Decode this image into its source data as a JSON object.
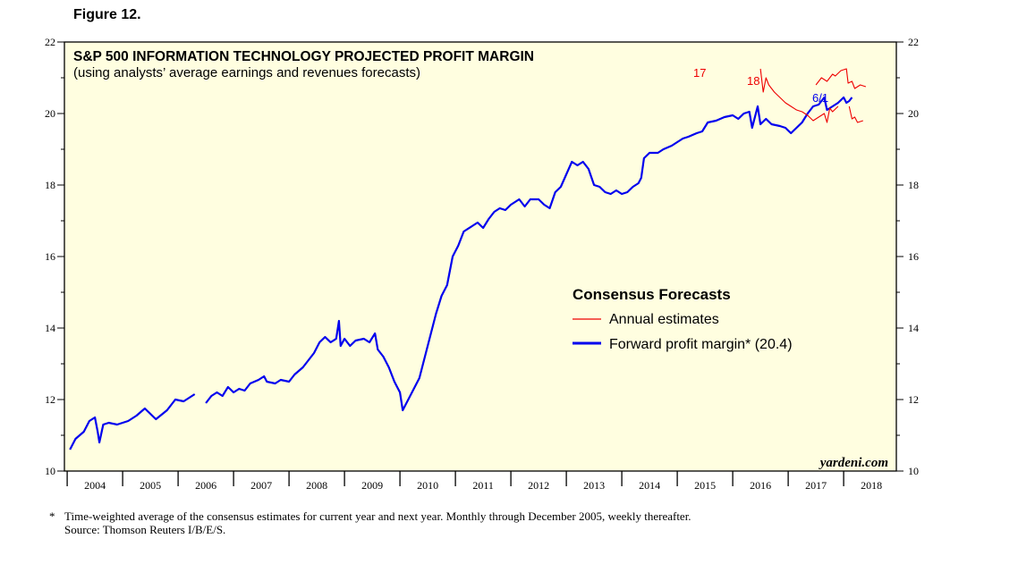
{
  "figure_label": "Figure 12.",
  "footnote_marker": "*",
  "footnote": "Time-weighted average of the consensus estimates for current year and next year. Monthly through December 2005, weekly thereafter.",
  "source": "Source: Thomson Reuters I/B/E/S.",
  "colors": {
    "plot_bg": "#fffee0",
    "forward_line": "#0000ee",
    "annual_line": "#ee0000",
    "axis": "#000000"
  },
  "chart_data": {
    "type": "line",
    "title": "S&P 500 INFORMATION TECHNOLOGY PROJECTED PROFIT MARGIN",
    "subtitle": "(using analysts’ average earnings and revenues forecasts)",
    "watermark": "yardeni.com",
    "x_range": [
      2003.95,
      2018.95
    ],
    "ylim": [
      10,
      22
    ],
    "y_ticks": [
      "10",
      "12",
      "14",
      "16",
      "18",
      "20",
      "22"
    ],
    "x_tick_labels": [
      "2004",
      "2005",
      "2006",
      "2007",
      "2008",
      "2009",
      "2010",
      "2011",
      "2012",
      "2013",
      "2014",
      "2015",
      "2016",
      "2017",
      "2018"
    ],
    "legend_title": "Consensus Forecasts",
    "legend": [
      "Annual estimates",
      "Forward profit margin* (20.4)"
    ],
    "end_label": "6/1",
    "series": [
      {
        "name": "Forward profit margin",
        "role": "forward",
        "segments": [
          [
            [
              2004.05,
              10.6
            ],
            [
              2004.15,
              10.9
            ],
            [
              2004.3,
              11.1
            ],
            [
              2004.4,
              11.4
            ],
            [
              2004.5,
              11.5
            ],
            [
              2004.55,
              11.1
            ],
            [
              2004.58,
              10.8
            ],
            [
              2004.65,
              11.3
            ],
            [
              2004.75,
              11.35
            ],
            [
              2004.9,
              11.3
            ],
            [
              2005.1,
              11.4
            ],
            [
              2005.25,
              11.55
            ],
            [
              2005.4,
              11.75
            ],
            [
              2005.5,
              11.6
            ],
            [
              2005.6,
              11.45
            ],
            [
              2005.8,
              11.7
            ],
            [
              2005.95,
              12.0
            ],
            [
              2006.1,
              11.95
            ],
            [
              2006.3,
              12.15
            ]
          ],
          [
            [
              2006.5,
              11.9
            ],
            [
              2006.6,
              12.1
            ],
            [
              2006.7,
              12.2
            ],
            [
              2006.8,
              12.1
            ],
            [
              2006.9,
              12.35
            ],
            [
              2007.0,
              12.2
            ],
            [
              2007.1,
              12.3
            ],
            [
              2007.2,
              12.25
            ],
            [
              2007.3,
              12.45
            ],
            [
              2007.45,
              12.55
            ],
            [
              2007.55,
              12.65
            ],
            [
              2007.6,
              12.5
            ],
            [
              2007.75,
              12.45
            ],
            [
              2007.85,
              12.55
            ],
            [
              2008.0,
              12.5
            ],
            [
              2008.1,
              12.7
            ],
            [
              2008.25,
              12.9
            ],
            [
              2008.35,
              13.1
            ],
            [
              2008.45,
              13.3
            ],
            [
              2008.55,
              13.6
            ],
            [
              2008.65,
              13.75
            ],
            [
              2008.75,
              13.6
            ],
            [
              2008.85,
              13.7
            ],
            [
              2008.9,
              14.2
            ],
            [
              2008.93,
              13.5
            ],
            [
              2009.0,
              13.7
            ],
            [
              2009.1,
              13.5
            ],
            [
              2009.2,
              13.65
            ],
            [
              2009.35,
              13.7
            ],
            [
              2009.45,
              13.6
            ],
            [
              2009.55,
              13.85
            ],
            [
              2009.6,
              13.4
            ],
            [
              2009.7,
              13.2
            ],
            [
              2009.8,
              12.9
            ],
            [
              2009.9,
              12.5
            ],
            [
              2010.0,
              12.2
            ],
            [
              2010.05,
              11.7
            ],
            [
              2010.15,
              12.0
            ],
            [
              2010.25,
              12.3
            ],
            [
              2010.35,
              12.6
            ],
            [
              2010.45,
              13.2
            ],
            [
              2010.55,
              13.8
            ],
            [
              2010.65,
              14.4
            ],
            [
              2010.75,
              14.9
            ],
            [
              2010.85,
              15.2
            ],
            [
              2010.95,
              16.0
            ],
            [
              2011.05,
              16.3
            ],
            [
              2011.15,
              16.7
            ],
            [
              2011.3,
              16.85
            ],
            [
              2011.4,
              16.95
            ],
            [
              2011.5,
              16.8
            ],
            [
              2011.6,
              17.05
            ],
            [
              2011.7,
              17.25
            ],
            [
              2011.8,
              17.35
            ],
            [
              2011.9,
              17.3
            ],
            [
              2012.0,
              17.45
            ],
            [
              2012.05,
              17.5
            ],
            [
              2012.15,
              17.6
            ],
            [
              2012.25,
              17.4
            ],
            [
              2012.35,
              17.6
            ],
            [
              2012.5,
              17.6
            ],
            [
              2012.6,
              17.45
            ],
            [
              2012.7,
              17.35
            ],
            [
              2012.8,
              17.8
            ],
            [
              2012.9,
              17.95
            ],
            [
              2013.0,
              18.3
            ],
            [
              2013.1,
              18.65
            ],
            [
              2013.2,
              18.55
            ],
            [
              2013.3,
              18.65
            ],
            [
              2013.4,
              18.45
            ],
            [
              2013.5,
              18.0
            ],
            [
              2013.6,
              17.95
            ],
            [
              2013.7,
              17.8
            ],
            [
              2013.8,
              17.75
            ],
            [
              2013.9,
              17.85
            ],
            [
              2014.0,
              17.75
            ],
            [
              2014.1,
              17.8
            ],
            [
              2014.2,
              17.95
            ],
            [
              2014.3,
              18.05
            ],
            [
              2014.35,
              18.2
            ],
            [
              2014.4,
              18.75
            ],
            [
              2014.5,
              18.9
            ],
            [
              2014.65,
              18.9
            ],
            [
              2014.75,
              19.0
            ],
            [
              2014.9,
              19.1
            ],
            [
              2015.0,
              19.2
            ],
            [
              2015.1,
              19.3
            ],
            [
              2015.2,
              19.35
            ],
            [
              2015.35,
              19.45
            ],
            [
              2015.45,
              19.5
            ],
            [
              2015.55,
              19.75
            ],
            [
              2015.7,
              19.8
            ],
            [
              2015.85,
              19.9
            ],
            [
              2016.0,
              19.95
            ],
            [
              2016.1,
              19.85
            ],
            [
              2016.2,
              20.0
            ],
            [
              2016.3,
              20.05
            ],
            [
              2016.35,
              19.6
            ],
            [
              2016.45,
              20.2
            ],
            [
              2016.5,
              19.7
            ],
            [
              2016.6,
              19.85
            ],
            [
              2016.7,
              19.7
            ],
            [
              2016.85,
              19.65
            ],
            [
              2016.95,
              19.6
            ],
            [
              2017.05,
              19.45
            ],
            [
              2017.15,
              19.6
            ],
            [
              2017.25,
              19.75
            ],
            [
              2017.35,
              20.0
            ],
            [
              2017.45,
              20.2
            ],
            [
              2017.55,
              20.25
            ],
            [
              2017.65,
              20.45
            ],
            [
              2017.7,
              20.1
            ],
            [
              2017.8,
              20.2
            ],
            [
              2017.9,
              20.3
            ],
            [
              2018.0,
              20.45
            ],
            [
              2018.05,
              20.3
            ],
            [
              2018.1,
              20.35
            ],
            [
              2018.15,
              20.45
            ]
          ]
        ]
      },
      {
        "name": "Annual estimates 2017",
        "role": "annual",
        "label": "17",
        "segments": [
          [
            [
              2016.5,
              21.25
            ],
            [
              2016.55,
              20.6
            ],
            [
              2016.6,
              21.0
            ],
            [
              2016.65,
              20.8
            ],
            [
              2016.75,
              20.6
            ],
            [
              2016.85,
              20.45
            ],
            [
              2016.95,
              20.3
            ],
            [
              2017.05,
              20.2
            ],
            [
              2017.15,
              20.1
            ],
            [
              2017.25,
              20.05
            ],
            [
              2017.35,
              19.95
            ],
            [
              2017.45,
              19.8
            ],
            [
              2017.55,
              19.9
            ],
            [
              2017.65,
              20.0
            ],
            [
              2017.7,
              19.75
            ],
            [
              2017.75,
              20.15
            ],
            [
              2017.8,
              20.05
            ],
            [
              2017.9,
              20.2
            ]
          ]
        ]
      },
      {
        "name": "Annual estimates 2018",
        "role": "annual",
        "label": "18",
        "segments": [
          [
            [
              2017.5,
              20.8
            ],
            [
              2017.6,
              21.0
            ],
            [
              2017.7,
              20.9
            ],
            [
              2017.8,
              21.1
            ],
            [
              2017.85,
              21.05
            ],
            [
              2017.95,
              21.2
            ],
            [
              2018.05,
              21.25
            ],
            [
              2018.08,
              20.85
            ],
            [
              2018.15,
              20.9
            ],
            [
              2018.2,
              20.7
            ],
            [
              2018.3,
              20.8
            ],
            [
              2018.4,
              20.75
            ]
          ],
          [
            [
              2018.1,
              20.2
            ],
            [
              2018.15,
              19.85
            ],
            [
              2018.2,
              19.9
            ],
            [
              2018.25,
              19.75
            ],
            [
              2018.35,
              19.8
            ]
          ]
        ]
      }
    ]
  }
}
